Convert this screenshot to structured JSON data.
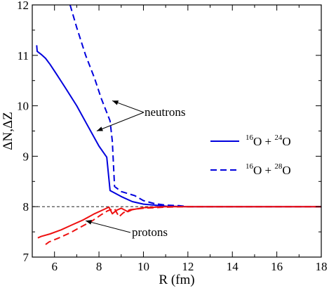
{
  "chart_data": {
    "type": "line",
    "xlabel": "R (fm)",
    "ylabel": "ΔN,ΔZ",
    "xlim": [
      5,
      18
    ],
    "ylim": [
      7,
      12
    ],
    "xticks": [
      6,
      8,
      10,
      12,
      14,
      16,
      18
    ],
    "yticks": [
      7,
      8,
      9,
      10,
      11,
      12
    ],
    "reference_line": {
      "y": 8,
      "style": "dashed"
    },
    "legend": {
      "placement": "right",
      "entries": [
        {
          "style": "solid",
          "parts": [
            "16",
            "O + ",
            "24",
            "O"
          ]
        },
        {
          "style": "dashed",
          "parts": [
            "16",
            "O + ",
            "28",
            "O"
          ]
        }
      ]
    },
    "annotations": [
      {
        "text": "neutrons",
        "arrows_to": [
          [
            8.6,
            10.1
          ],
          [
            7.9,
            9.5
          ]
        ]
      },
      {
        "text": "protons",
        "arrows_to": [
          [
            7.4,
            7.72
          ]
        ]
      }
    ],
    "colors": {
      "neutrons": "#0000dd",
      "protons": "#ee1111"
    },
    "series": [
      {
        "name": "neutrons 16O+24O",
        "color": "#0000dd",
        "style": "solid",
        "points": [
          [
            5.2,
            11.2
          ],
          [
            5.22,
            11.08
          ],
          [
            5.4,
            11.02
          ],
          [
            5.6,
            10.94
          ],
          [
            5.8,
            10.82
          ],
          [
            6.1,
            10.62
          ],
          [
            6.5,
            10.35
          ],
          [
            7.0,
            10.0
          ],
          [
            7.5,
            9.6
          ],
          [
            8.0,
            9.2
          ],
          [
            8.35,
            8.98
          ],
          [
            8.5,
            8.32
          ],
          [
            9.0,
            8.2
          ],
          [
            9.5,
            8.1
          ],
          [
            10.0,
            8.05
          ],
          [
            10.5,
            8.03
          ],
          [
            11.0,
            8.01
          ],
          [
            12.0,
            8.0
          ],
          [
            18.0,
            8.0
          ]
        ]
      },
      {
        "name": "neutrons 16O+28O",
        "color": "#0000dd",
        "style": "dashed",
        "points": [
          [
            6.7,
            12.0
          ],
          [
            7.0,
            11.55
          ],
          [
            7.4,
            11.0
          ],
          [
            7.8,
            10.55
          ],
          [
            8.1,
            10.15
          ],
          [
            8.5,
            9.7
          ],
          [
            8.6,
            9.3
          ],
          [
            8.7,
            8.4
          ],
          [
            9.0,
            8.3
          ],
          [
            9.6,
            8.22
          ],
          [
            10.0,
            8.12
          ],
          [
            10.5,
            8.06
          ],
          [
            11.0,
            8.03
          ],
          [
            11.6,
            8.02
          ],
          [
            12.0,
            8.0
          ],
          [
            18.0,
            8.0
          ]
        ]
      },
      {
        "name": "protons 16O+24O",
        "color": "#ee1111",
        "style": "solid",
        "points": [
          [
            5.25,
            7.38
          ],
          [
            5.4,
            7.41
          ],
          [
            5.8,
            7.46
          ],
          [
            6.3,
            7.54
          ],
          [
            6.8,
            7.64
          ],
          [
            7.3,
            7.74
          ],
          [
            7.8,
            7.86
          ],
          [
            8.2,
            7.94
          ],
          [
            8.45,
            7.99
          ],
          [
            8.6,
            7.86
          ],
          [
            8.8,
            7.93
          ],
          [
            9.0,
            7.97
          ],
          [
            9.3,
            7.9
          ],
          [
            9.5,
            7.94
          ],
          [
            10.0,
            7.98
          ],
          [
            11.0,
            8.0
          ],
          [
            18.0,
            8.0
          ]
        ]
      },
      {
        "name": "protons 16O+28O",
        "color": "#ee1111",
        "style": "dashed",
        "points": [
          [
            5.6,
            7.25
          ],
          [
            5.75,
            7.3
          ],
          [
            6.2,
            7.38
          ],
          [
            6.7,
            7.48
          ],
          [
            7.2,
            7.6
          ],
          [
            7.7,
            7.72
          ],
          [
            8.1,
            7.84
          ],
          [
            8.4,
            7.92
          ],
          [
            8.7,
            7.96
          ],
          [
            8.9,
            7.8
          ],
          [
            9.1,
            7.88
          ],
          [
            9.4,
            7.94
          ],
          [
            10.0,
            7.97
          ],
          [
            11.0,
            7.99
          ],
          [
            12.0,
            8.0
          ],
          [
            18.0,
            8.0
          ]
        ]
      }
    ]
  }
}
